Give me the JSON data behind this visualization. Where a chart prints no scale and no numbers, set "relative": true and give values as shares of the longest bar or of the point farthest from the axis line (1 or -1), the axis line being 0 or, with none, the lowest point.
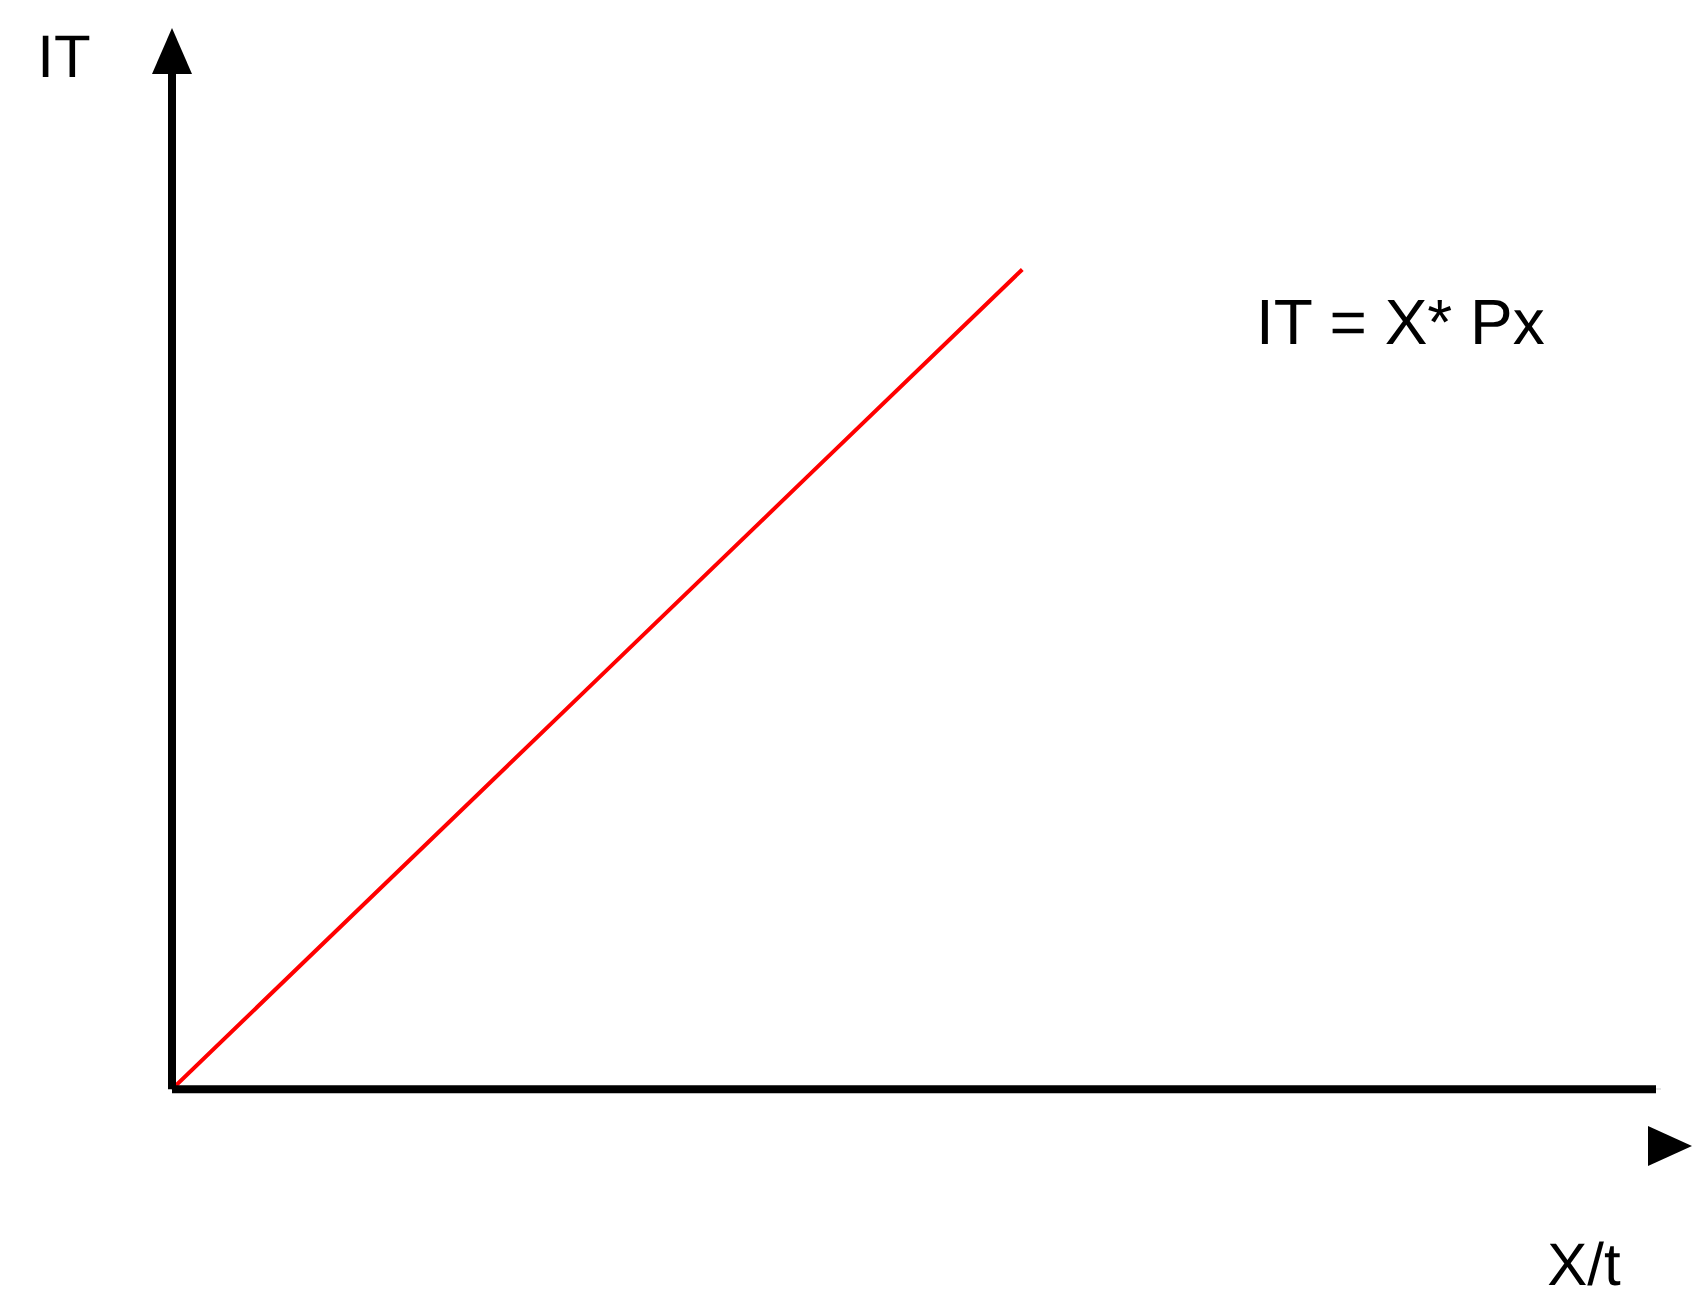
{
  "chart_data": {
    "type": "line",
    "xlabel": "X/t",
    "ylabel": "IT",
    "relative": true,
    "legend": false,
    "marker": "none",
    "annotations": [
      "IT = X* Px"
    ],
    "categories": [
      null,
      null,
      null,
      null,
      null,
      null,
      null,
      null
    ],
    "series": [
      {
        "color": "#ff0000",
        "values": [
          0,
          0.25,
          0.5,
          0.75,
          1,
          null,
          null,
          null
        ]
      }
    ]
  }
}
